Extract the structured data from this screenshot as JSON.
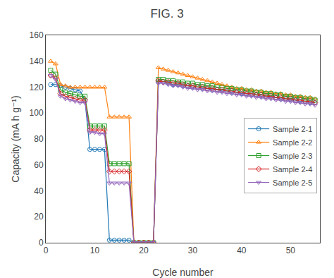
{
  "chart_data": {
    "type": "line",
    "title": "FIG. 3",
    "xlabel": "Cycle number",
    "ylabel": "Capacity (mA h g⁻¹)",
    "xlim": [
      0,
      56
    ],
    "ylim": [
      0,
      160
    ],
    "xticks": [
      0,
      10,
      20,
      30,
      40,
      50
    ],
    "yticks": [
      0,
      20,
      40,
      60,
      80,
      100,
      120,
      140,
      160
    ],
    "grid": false,
    "legend": "right",
    "x": [
      1,
      2,
      3,
      4,
      5,
      6,
      7,
      8,
      9,
      10,
      11,
      12,
      13,
      14,
      15,
      16,
      17,
      18,
      19,
      20,
      21,
      22,
      23,
      24,
      25,
      26,
      27,
      28,
      29,
      30,
      31,
      32,
      33,
      34,
      35,
      36,
      37,
      38,
      39,
      40,
      41,
      42,
      43,
      44,
      45,
      46,
      47,
      48,
      49,
      50,
      51,
      52,
      53,
      54,
      55
    ],
    "series": [
      {
        "name": "Sample 2-1",
        "marker": "circle",
        "values": [
          122,
          122,
          121,
          120,
          119,
          118,
          117,
          110,
          72,
          72,
          72,
          72,
          2,
          2,
          2,
          2,
          2,
          0,
          0,
          0,
          0,
          0,
          124,
          124,
          123,
          122,
          122,
          121,
          121,
          120,
          120,
          119,
          119,
          118,
          118,
          117,
          117,
          116,
          116,
          115,
          115,
          114,
          114,
          113,
          113,
          112,
          112,
          111,
          111,
          110,
          110,
          109,
          109,
          108,
          108
        ]
      },
      {
        "name": "Sample 2-2",
        "marker": "triangle-up",
        "values": [
          140,
          138,
          122,
          121,
          120,
          120,
          120,
          120,
          120,
          120,
          120,
          120,
          97,
          97,
          97,
          97,
          97,
          0,
          0,
          0,
          0,
          0,
          135,
          134,
          133,
          132,
          131,
          130,
          129,
          128,
          127,
          126,
          125,
          124,
          123,
          122,
          121,
          120,
          119,
          119,
          118,
          118,
          117,
          117,
          116,
          116,
          115,
          115,
          114,
          114,
          113,
          113,
          112,
          112,
          111
        ]
      },
      {
        "name": "Sample 2-3",
        "marker": "square",
        "values": [
          133,
          130,
          118,
          116,
          115,
          114,
          113,
          113,
          90,
          90,
          90,
          90,
          61,
          61,
          61,
          61,
          61,
          0,
          0,
          0,
          0,
          0,
          126,
          126,
          125,
          125,
          124,
          124,
          123,
          123,
          122,
          122,
          121,
          121,
          120,
          120,
          119,
          119,
          118,
          118,
          117,
          117,
          116,
          116,
          115,
          115,
          114,
          114,
          113,
          113,
          112,
          112,
          111,
          111,
          110
        ]
      },
      {
        "name": "Sample 2-4",
        "marker": "diamond",
        "values": [
          129,
          127,
          115,
          113,
          112,
          111,
          110,
          110,
          87,
          87,
          87,
          87,
          55,
          55,
          55,
          55,
          55,
          0,
          0,
          0,
          0,
          0,
          125,
          124,
          124,
          123,
          123,
          122,
          121,
          121,
          120,
          120,
          119,
          119,
          118,
          118,
          117,
          117,
          116,
          116,
          115,
          115,
          114,
          114,
          113,
          113,
          112,
          112,
          111,
          111,
          110,
          110,
          109,
          109,
          108
        ]
      },
      {
        "name": "Sample 2-5",
        "marker": "triangle-down",
        "values": [
          129,
          126,
          113,
          111,
          110,
          109,
          108,
          108,
          85,
          85,
          84,
          84,
          46,
          46,
          46,
          46,
          46,
          0,
          0,
          0,
          0,
          0,
          123,
          123,
          122,
          121,
          121,
          120,
          119,
          119,
          118,
          118,
          117,
          117,
          116,
          116,
          115,
          115,
          114,
          114,
          113,
          113,
          112,
          112,
          111,
          111,
          110,
          110,
          109,
          109,
          108,
          108,
          107,
          107,
          106
        ]
      }
    ]
  }
}
